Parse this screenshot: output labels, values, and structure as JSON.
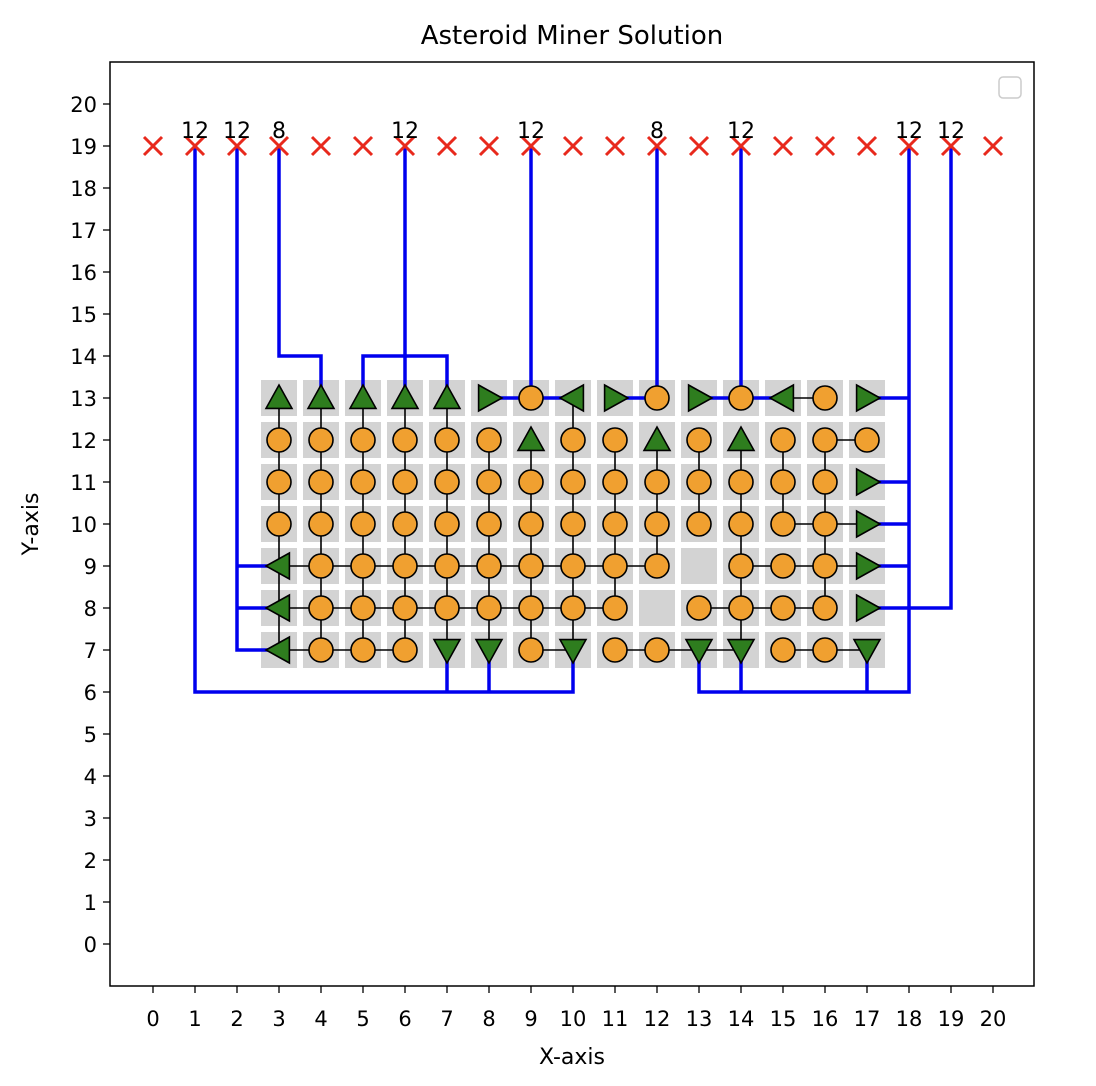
{
  "chart_data": {
    "type": "scatter",
    "title": "Asteroid Miner Solution",
    "xlabel": "X-axis",
    "ylabel": "Y-axis",
    "xlim": [
      -1,
      21
    ],
    "ylim": [
      -1,
      21
    ],
    "xticks": [
      0,
      1,
      2,
      3,
      4,
      5,
      6,
      7,
      8,
      9,
      10,
      11,
      12,
      13,
      14,
      15,
      16,
      17,
      18,
      19,
      20
    ],
    "yticks": [
      0,
      1,
      2,
      3,
      4,
      5,
      6,
      7,
      8,
      9,
      10,
      11,
      12,
      13,
      14,
      15,
      16,
      17,
      18,
      19,
      20
    ],
    "grid": false,
    "legend": "top-right (empty)",
    "colors": {
      "cell": "#d3d3d3",
      "miner": "#f0a030",
      "conveyor": "#2e7d1e",
      "pipe": "#0000ee",
      "marker_x": "#e8291c",
      "link": "#000000"
    },
    "rows": {
      "7": [
        3,
        4,
        5,
        6,
        7,
        8,
        9,
        10,
        11,
        12,
        13,
        14,
        15,
        16,
        17
      ],
      "8": [
        3,
        4,
        5,
        6,
        7,
        8,
        9,
        10,
        11,
        12,
        13,
        14,
        15,
        16,
        17
      ],
      "9": [
        3,
        4,
        5,
        6,
        7,
        8,
        9,
        10,
        11,
        12,
        13,
        14,
        15,
        16,
        17
      ],
      "10": [
        3,
        4,
        5,
        6,
        7,
        8,
        9,
        10,
        11,
        12,
        13,
        14,
        15,
        16,
        17
      ],
      "11": [
        3,
        4,
        5,
        6,
        7,
        8,
        9,
        10,
        11,
        12,
        13,
        14,
        15,
        16,
        17
      ],
      "12": [
        3,
        4,
        5,
        6,
        7,
        8,
        9,
        10,
        11,
        12,
        13,
        14,
        15,
        16,
        17
      ],
      "13": [
        3,
        4,
        5,
        6,
        7,
        8,
        9,
        10,
        11,
        12,
        13,
        14,
        15,
        16,
        17
      ]
    },
    "empty_cells": [
      [
        13,
        9
      ],
      [
        12,
        8
      ]
    ],
    "conveyors": [
      {
        "x": 3,
        "y": 13,
        "dir": "up"
      },
      {
        "x": 4,
        "y": 13,
        "dir": "up"
      },
      {
        "x": 5,
        "y": 13,
        "dir": "up"
      },
      {
        "x": 6,
        "y": 13,
        "dir": "up"
      },
      {
        "x": 7,
        "y": 13,
        "dir": "up"
      },
      {
        "x": 8,
        "y": 13,
        "dir": "right"
      },
      {
        "x": 10,
        "y": 13,
        "dir": "left"
      },
      {
        "x": 11,
        "y": 13,
        "dir": "right"
      },
      {
        "x": 13,
        "y": 13,
        "dir": "right"
      },
      {
        "x": 15,
        "y": 13,
        "dir": "left"
      },
      {
        "x": 17,
        "y": 13,
        "dir": "right"
      },
      {
        "x": 9,
        "y": 12,
        "dir": "up"
      },
      {
        "x": 12,
        "y": 12,
        "dir": "up"
      },
      {
        "x": 14,
        "y": 12,
        "dir": "up"
      },
      {
        "x": 17,
        "y": 11,
        "dir": "right"
      },
      {
        "x": 17,
        "y": 10,
        "dir": "right"
      },
      {
        "x": 17,
        "y": 9,
        "dir": "right"
      },
      {
        "x": 17,
        "y": 8,
        "dir": "right"
      },
      {
        "x": 3,
        "y": 9,
        "dir": "left"
      },
      {
        "x": 3,
        "y": 8,
        "dir": "left"
      },
      {
        "x": 3,
        "y": 7,
        "dir": "left"
      },
      {
        "x": 7,
        "y": 7,
        "dir": "down"
      },
      {
        "x": 8,
        "y": 7,
        "dir": "down"
      },
      {
        "x": 10,
        "y": 7,
        "dir": "down"
      },
      {
        "x": 13,
        "y": 7,
        "dir": "down"
      },
      {
        "x": 14,
        "y": 7,
        "dir": "down"
      },
      {
        "x": 17,
        "y": 7,
        "dir": "down"
      }
    ],
    "miners": [
      [
        9,
        13
      ],
      [
        12,
        13
      ],
      [
        14,
        13
      ],
      [
        16,
        13
      ],
      [
        3,
        12
      ],
      [
        4,
        12
      ],
      [
        5,
        12
      ],
      [
        6,
        12
      ],
      [
        7,
        12
      ],
      [
        8,
        12
      ],
      [
        10,
        12
      ],
      [
        11,
        12
      ],
      [
        13,
        12
      ],
      [
        15,
        12
      ],
      [
        16,
        12
      ],
      [
        17,
        12
      ],
      [
        3,
        11
      ],
      [
        4,
        11
      ],
      [
        5,
        11
      ],
      [
        6,
        11
      ],
      [
        7,
        11
      ],
      [
        8,
        11
      ],
      [
        9,
        11
      ],
      [
        10,
        11
      ],
      [
        11,
        11
      ],
      [
        12,
        11
      ],
      [
        13,
        11
      ],
      [
        14,
        11
      ],
      [
        15,
        11
      ],
      [
        16,
        11
      ],
      [
        3,
        10
      ],
      [
        4,
        10
      ],
      [
        5,
        10
      ],
      [
        6,
        10
      ],
      [
        7,
        10
      ],
      [
        8,
        10
      ],
      [
        9,
        10
      ],
      [
        10,
        10
      ],
      [
        11,
        10
      ],
      [
        12,
        10
      ],
      [
        13,
        10
      ],
      [
        14,
        10
      ],
      [
        15,
        10
      ],
      [
        16,
        10
      ],
      [
        4,
        9
      ],
      [
        5,
        9
      ],
      [
        6,
        9
      ],
      [
        7,
        9
      ],
      [
        8,
        9
      ],
      [
        9,
        9
      ],
      [
        10,
        9
      ],
      [
        11,
        9
      ],
      [
        12,
        9
      ],
      [
        14,
        9
      ],
      [
        15,
        9
      ],
      [
        16,
        9
      ],
      [
        4,
        8
      ],
      [
        5,
        8
      ],
      [
        6,
        8
      ],
      [
        7,
        8
      ],
      [
        8,
        8
      ],
      [
        9,
        8
      ],
      [
        10,
        8
      ],
      [
        11,
        8
      ],
      [
        13,
        8
      ],
      [
        14,
        8
      ],
      [
        15,
        8
      ],
      [
        16,
        8
      ],
      [
        4,
        7
      ],
      [
        5,
        7
      ],
      [
        6,
        7
      ],
      [
        9,
        7
      ],
      [
        11,
        7
      ],
      [
        12,
        7
      ],
      [
        15,
        7
      ],
      [
        16,
        7
      ]
    ],
    "links": [
      [
        [
          3,
          13
        ],
        [
          3,
          7
        ]
      ],
      [
        [
          4,
          13
        ],
        [
          4,
          7
        ]
      ],
      [
        [
          5,
          13
        ],
        [
          5,
          7
        ]
      ],
      [
        [
          6,
          13
        ],
        [
          6,
          7
        ]
      ],
      [
        [
          7,
          13
        ],
        [
          7,
          7
        ]
      ],
      [
        [
          8,
          12
        ],
        [
          8,
          7
        ]
      ],
      [
        [
          9,
          12
        ],
        [
          9,
          7
        ]
      ],
      [
        [
          10,
          13
        ],
        [
          10,
          7
        ]
      ],
      [
        [
          11,
          12
        ],
        [
          11,
          8
        ]
      ],
      [
        [
          12,
          12
        ],
        [
          12,
          9
        ]
      ],
      [
        [
          13,
          12
        ],
        [
          13,
          10
        ]
      ],
      [
        [
          14,
          12
        ],
        [
          14,
          7
        ]
      ],
      [
        [
          15,
          12
        ],
        [
          15,
          10
        ]
      ],
      [
        [
          16,
          12
        ],
        [
          16,
          8
        ]
      ],
      [
        [
          3,
          9
        ],
        [
          12,
          9
        ]
      ],
      [
        [
          3,
          8
        ],
        [
          11,
          8
        ]
      ],
      [
        [
          3,
          7
        ],
        [
          6,
          7
        ]
      ],
      [
        [
          9,
          7
        ],
        [
          10,
          7
        ]
      ],
      [
        [
          11,
          7
        ],
        [
          14,
          7
        ]
      ],
      [
        [
          15,
          13
        ],
        [
          16,
          13
        ]
      ],
      [
        [
          16,
          12
        ],
        [
          17,
          12
        ]
      ],
      [
        [
          15,
          10
        ],
        [
          17,
          10
        ]
      ],
      [
        [
          14,
          9
        ],
        [
          17,
          9
        ]
      ],
      [
        [
          13,
          8
        ],
        [
          16,
          8
        ]
      ],
      [
        [
          15,
          7
        ],
        [
          17,
          7
        ]
      ]
    ],
    "pipes": [
      [
        [
          1,
          19
        ],
        [
          1,
          6
        ],
        [
          10,
          6
        ],
        [
          10,
          7
        ]
      ],
      [
        [
          7,
          6
        ],
        [
          7,
          7
        ]
      ],
      [
        [
          8,
          6
        ],
        [
          8,
          7
        ]
      ],
      [
        [
          2,
          19
        ],
        [
          2,
          7
        ],
        [
          3,
          7
        ]
      ],
      [
        [
          2,
          8
        ],
        [
          3,
          8
        ]
      ],
      [
        [
          2,
          9
        ],
        [
          3,
          9
        ]
      ],
      [
        [
          3,
          19
        ],
        [
          3,
          14
        ],
        [
          4,
          14
        ],
        [
          4,
          13
        ]
      ],
      [
        [
          6,
          19
        ],
        [
          6,
          14
        ],
        [
          5,
          14
        ],
        [
          5,
          13
        ]
      ],
      [
        [
          6,
          14
        ],
        [
          7,
          14
        ],
        [
          7,
          13
        ]
      ],
      [
        [
          6,
          14
        ],
        [
          6,
          13
        ]
      ],
      [
        [
          9,
          19
        ],
        [
          9,
          13
        ],
        [
          8,
          13
        ]
      ],
      [
        [
          9,
          13
        ],
        [
          10,
          13
        ]
      ],
      [
        [
          12,
          19
        ],
        [
          12,
          13
        ],
        [
          11,
          13
        ]
      ],
      [
        [
          14,
          19
        ],
        [
          14,
          13
        ],
        [
          13,
          13
        ]
      ],
      [
        [
          14,
          13
        ],
        [
          15,
          13
        ]
      ],
      [
        [
          18,
          19
        ],
        [
          18,
          6
        ],
        [
          13,
          6
        ],
        [
          13,
          7
        ]
      ],
      [
        [
          14,
          6
        ],
        [
          14,
          7
        ]
      ],
      [
        [
          17,
          6
        ],
        [
          17,
          7
        ]
      ],
      [
        [
          18,
          13
        ],
        [
          17,
          13
        ]
      ],
      [
        [
          18,
          11
        ],
        [
          17,
          11
        ]
      ],
      [
        [
          18,
          10
        ],
        [
          17,
          10
        ]
      ],
      [
        [
          18,
          9
        ],
        [
          17,
          9
        ]
      ],
      [
        [
          19,
          19
        ],
        [
          19,
          8
        ],
        [
          17,
          8
        ]
      ]
    ],
    "x_markers": [
      0,
      1,
      2,
      3,
      4,
      5,
      6,
      7,
      8,
      9,
      10,
      11,
      12,
      13,
      14,
      15,
      16,
      17,
      18,
      19,
      20
    ],
    "x_marker_y": 19,
    "annotations": [
      {
        "x": 1,
        "y": 19,
        "text": "12"
      },
      {
        "x": 2,
        "y": 19,
        "text": "12"
      },
      {
        "x": 3,
        "y": 19,
        "text": "8"
      },
      {
        "x": 6,
        "y": 19,
        "text": "12"
      },
      {
        "x": 9,
        "y": 19,
        "text": "12"
      },
      {
        "x": 12,
        "y": 19,
        "text": "8"
      },
      {
        "x": 14,
        "y": 19,
        "text": "12"
      },
      {
        "x": 18,
        "y": 19,
        "text": "12"
      },
      {
        "x": 19,
        "y": 19,
        "text": "12"
      }
    ]
  }
}
